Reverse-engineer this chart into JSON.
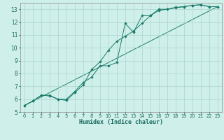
{
  "title": "",
  "xlabel": "Humidex (Indice chaleur)",
  "ylabel": "",
  "bg_color": "#cff0ea",
  "grid_color": "#aad4cc",
  "line_color": "#1a7a6a",
  "xlim": [
    -0.5,
    23.5
  ],
  "ylim": [
    5,
    13.5
  ],
  "yticks": [
    5,
    6,
    7,
    8,
    9,
    10,
    11,
    12,
    13
  ],
  "xticks": [
    0,
    1,
    2,
    3,
    4,
    5,
    6,
    7,
    8,
    9,
    10,
    11,
    12,
    13,
    14,
    15,
    16,
    17,
    18,
    19,
    20,
    21,
    22,
    23
  ],
  "line1_x": [
    0,
    1,
    2,
    3,
    4,
    5,
    6,
    7,
    8,
    9,
    10,
    11,
    12,
    13,
    14,
    15,
    16,
    17,
    18,
    19,
    20,
    21,
    22,
    23
  ],
  "line1_y": [
    5.5,
    5.85,
    6.3,
    6.25,
    6.0,
    6.0,
    6.6,
    7.3,
    7.7,
    8.6,
    8.6,
    8.85,
    11.9,
    11.2,
    12.5,
    12.5,
    12.9,
    13.0,
    13.1,
    13.2,
    13.3,
    13.35,
    13.2,
    13.2
  ],
  "line2_x": [
    0,
    1,
    2,
    3,
    4,
    5,
    6,
    7,
    8,
    9,
    10,
    11,
    12,
    13,
    14,
    15,
    16,
    17,
    18,
    19,
    20,
    21,
    22,
    23
  ],
  "line2_y": [
    5.5,
    5.85,
    6.3,
    6.3,
    6.0,
    5.9,
    6.5,
    7.1,
    8.3,
    8.9,
    9.8,
    10.5,
    10.9,
    11.3,
    11.9,
    12.5,
    13.0,
    13.0,
    13.15,
    13.2,
    13.3,
    13.35,
    13.2,
    13.2
  ],
  "line3_x": [
    0,
    23
  ],
  "line3_y": [
    5.5,
    13.2
  ]
}
